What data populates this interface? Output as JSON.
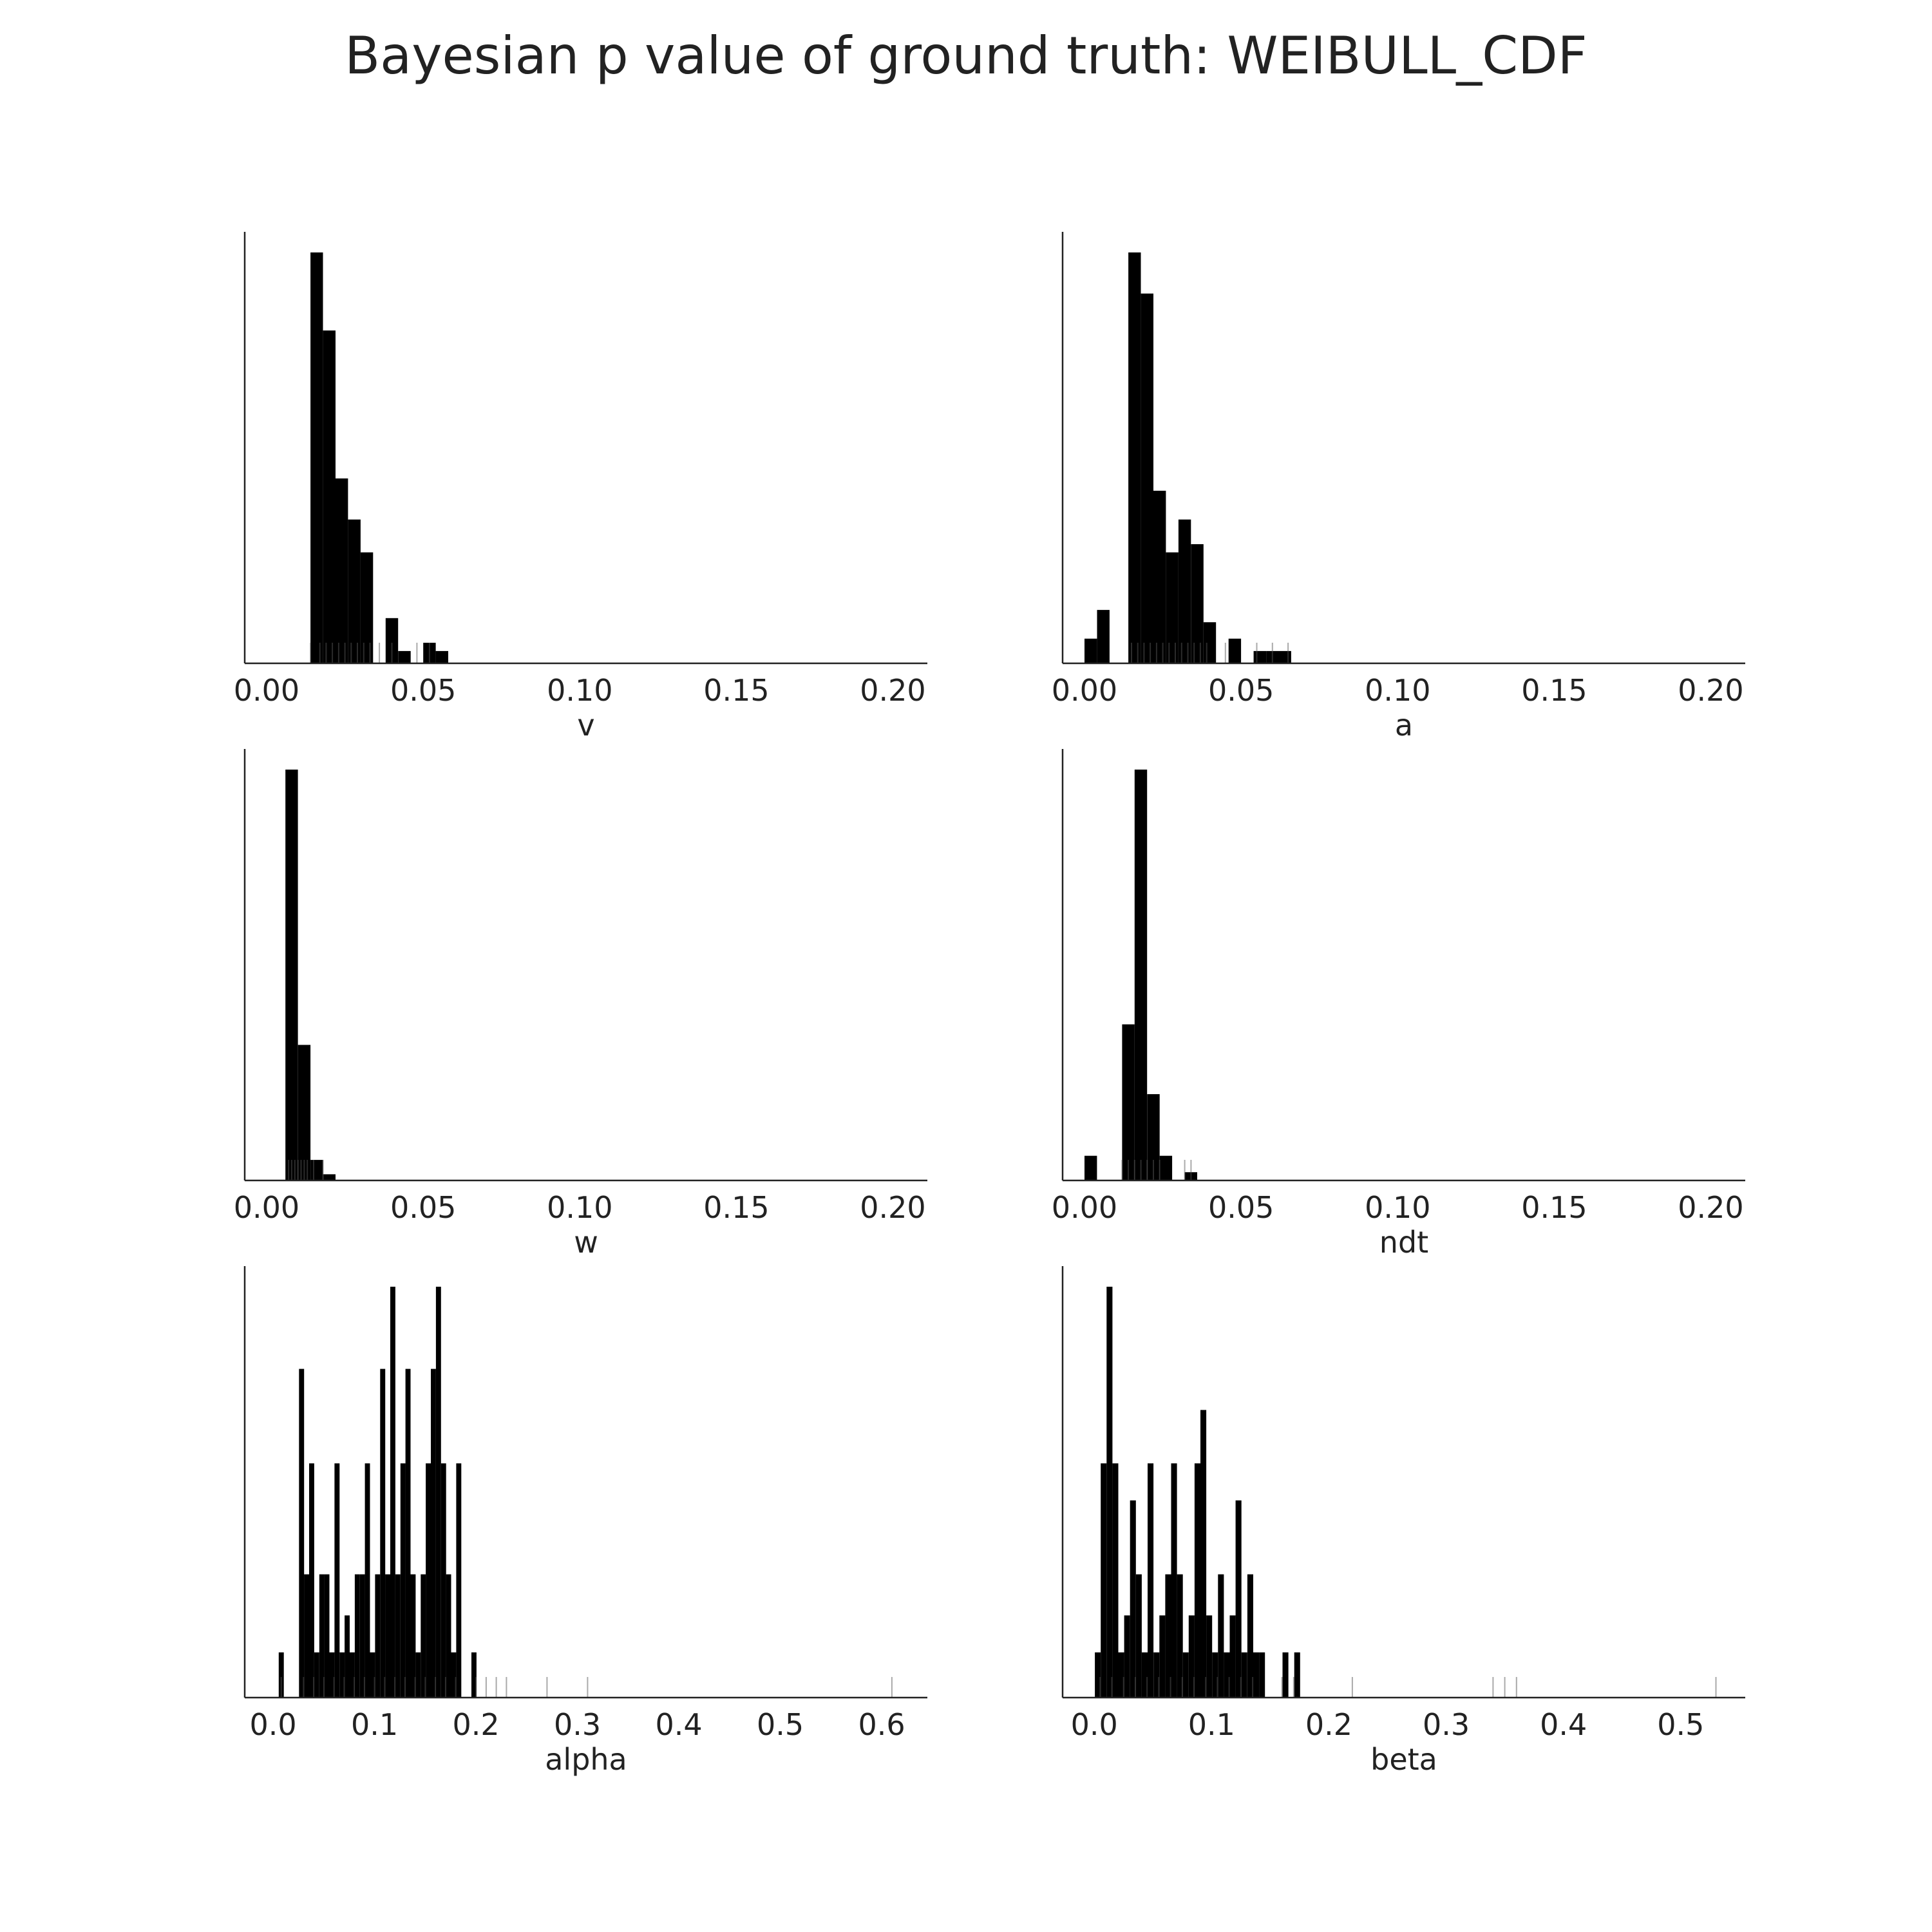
{
  "title": "Bayesian p value of ground truth: WEIBULL_CDF",
  "colors": {
    "bar": "#000000",
    "rug": "#555555",
    "axis": "#222222",
    "text": "#222222"
  },
  "chart_data": [
    {
      "type": "bar",
      "panel": "top-left",
      "xlabel": "v",
      "xlim": [
        -0.007,
        0.211
      ],
      "xticks": [
        0.0,
        0.05,
        0.1,
        0.15,
        0.2
      ],
      "xtick_labels": [
        "0.00",
        "0.05",
        "0.10",
        "0.15",
        "0.20"
      ],
      "bin_width": 0.004,
      "bins": [
        {
          "x": 0.016,
          "h": 1.0
        },
        {
          "x": 0.02,
          "h": 0.81
        },
        {
          "x": 0.024,
          "h": 0.45
        },
        {
          "x": 0.028,
          "h": 0.35
        },
        {
          "x": 0.032,
          "h": 0.27
        },
        {
          "x": 0.04,
          "h": 0.11
        },
        {
          "x": 0.044,
          "h": 0.03
        },
        {
          "x": 0.052,
          "h": 0.05
        },
        {
          "x": 0.056,
          "h": 0.03
        }
      ],
      "rug": [
        0.014,
        0.017,
        0.019,
        0.021,
        0.023,
        0.025,
        0.027,
        0.029,
        0.031,
        0.033,
        0.036,
        0.04,
        0.048,
        0.052
      ]
    },
    {
      "type": "bar",
      "panel": "top-right",
      "xlabel": "a",
      "xlim": [
        -0.007,
        0.211
      ],
      "xticks": [
        0.0,
        0.05,
        0.1,
        0.15,
        0.2
      ],
      "xtick_labels": [
        "0.00",
        "0.05",
        "0.10",
        "0.15",
        "0.20"
      ],
      "bin_width": 0.004,
      "bins": [
        {
          "x": 0.002,
          "h": 0.06
        },
        {
          "x": 0.006,
          "h": 0.13
        },
        {
          "x": 0.016,
          "h": 1.0
        },
        {
          "x": 0.02,
          "h": 0.9
        },
        {
          "x": 0.024,
          "h": 0.42
        },
        {
          "x": 0.028,
          "h": 0.27
        },
        {
          "x": 0.032,
          "h": 0.35
        },
        {
          "x": 0.036,
          "h": 0.29
        },
        {
          "x": 0.04,
          "h": 0.1
        },
        {
          "x": 0.048,
          "h": 0.06
        },
        {
          "x": 0.056,
          "h": 0.03
        },
        {
          "x": 0.06,
          "h": 0.03
        },
        {
          "x": 0.064,
          "h": 0.03
        }
      ],
      "rug": [
        0.015,
        0.017,
        0.019,
        0.021,
        0.023,
        0.025,
        0.027,
        0.029,
        0.031,
        0.033,
        0.035,
        0.037,
        0.039,
        0.045,
        0.055,
        0.06,
        0.065
      ]
    },
    {
      "type": "bar",
      "panel": "middle-left",
      "xlabel": "w",
      "xlim": [
        -0.007,
        0.211
      ],
      "xticks": [
        0.0,
        0.05,
        0.1,
        0.15,
        0.2
      ],
      "xtick_labels": [
        "0.00",
        "0.05",
        "0.10",
        "0.15",
        "0.20"
      ],
      "bin_width": 0.004,
      "bins": [
        {
          "x": 0.008,
          "h": 1.0
        },
        {
          "x": 0.012,
          "h": 0.33
        },
        {
          "x": 0.016,
          "h": 0.05
        },
        {
          "x": 0.02,
          "h": 0.015
        }
      ],
      "rug": [
        0.007,
        0.008,
        0.009,
        0.01,
        0.011,
        0.012,
        0.013,
        0.015,
        0.018
      ]
    },
    {
      "type": "bar",
      "panel": "middle-right",
      "xlabel": "ndt",
      "xlim": [
        -0.007,
        0.211
      ],
      "xticks": [
        0.0,
        0.05,
        0.1,
        0.15,
        0.2
      ],
      "xtick_labels": [
        "0.00",
        "0.05",
        "0.10",
        "0.15",
        "0.20"
      ],
      "bin_width": 0.004,
      "bins": [
        {
          "x": 0.002,
          "h": 0.06
        },
        {
          "x": 0.014,
          "h": 0.38
        },
        {
          "x": 0.018,
          "h": 1.0
        },
        {
          "x": 0.022,
          "h": 0.21
        },
        {
          "x": 0.026,
          "h": 0.06
        },
        {
          "x": 0.034,
          "h": 0.02
        }
      ],
      "rug": [
        0.012,
        0.014,
        0.016,
        0.018,
        0.02,
        0.022,
        0.024,
        0.032,
        0.034
      ]
    },
    {
      "type": "bar",
      "panel": "bottom-left",
      "xlabel": "alpha",
      "xlim": [
        -0.028,
        0.645
      ],
      "xticks": [
        0.0,
        0.1,
        0.2,
        0.3,
        0.4,
        0.5,
        0.6
      ],
      "xtick_labels": [
        "0.0",
        "0.1",
        "0.2",
        "0.3",
        "0.4",
        "0.5",
        "0.6"
      ],
      "bin_width": 0.005,
      "bins": [
        {
          "x": 0.008,
          "h": 0.11
        },
        {
          "x": 0.028,
          "h": 0.8
        },
        {
          "x": 0.033,
          "h": 0.3
        },
        {
          "x": 0.038,
          "h": 0.57
        },
        {
          "x": 0.043,
          "h": 0.11
        },
        {
          "x": 0.048,
          "h": 0.3
        },
        {
          "x": 0.053,
          "h": 0.3
        },
        {
          "x": 0.058,
          "h": 0.11
        },
        {
          "x": 0.063,
          "h": 0.57
        },
        {
          "x": 0.068,
          "h": 0.11
        },
        {
          "x": 0.073,
          "h": 0.2
        },
        {
          "x": 0.078,
          "h": 0.11
        },
        {
          "x": 0.083,
          "h": 0.3
        },
        {
          "x": 0.088,
          "h": 0.3
        },
        {
          "x": 0.093,
          "h": 0.57
        },
        {
          "x": 0.098,
          "h": 0.11
        },
        {
          "x": 0.103,
          "h": 0.3
        },
        {
          "x": 0.108,
          "h": 0.8
        },
        {
          "x": 0.113,
          "h": 0.3
        },
        {
          "x": 0.118,
          "h": 1.0
        },
        {
          "x": 0.123,
          "h": 0.3
        },
        {
          "x": 0.128,
          "h": 0.57
        },
        {
          "x": 0.133,
          "h": 0.8
        },
        {
          "x": 0.138,
          "h": 0.3
        },
        {
          "x": 0.143,
          "h": 0.11
        },
        {
          "x": 0.148,
          "h": 0.3
        },
        {
          "x": 0.153,
          "h": 0.57
        },
        {
          "x": 0.158,
          "h": 0.8
        },
        {
          "x": 0.163,
          "h": 1.0
        },
        {
          "x": 0.168,
          "h": 0.57
        },
        {
          "x": 0.173,
          "h": 0.3
        },
        {
          "x": 0.178,
          "h": 0.11
        },
        {
          "x": 0.183,
          "h": 0.57
        },
        {
          "x": 0.198,
          "h": 0.11
        }
      ],
      "rug": [
        0.008,
        0.03,
        0.04,
        0.05,
        0.06,
        0.07,
        0.08,
        0.09,
        0.1,
        0.11,
        0.12,
        0.13,
        0.14,
        0.15,
        0.16,
        0.17,
        0.18,
        0.2,
        0.21,
        0.22,
        0.23,
        0.27,
        0.31,
        0.61
      ]
    },
    {
      "type": "bar",
      "panel": "bottom-right",
      "xlabel": "beta",
      "xlim": [
        -0.027,
        0.555
      ],
      "xticks": [
        0.0,
        0.1,
        0.2,
        0.3,
        0.4,
        0.5
      ],
      "xtick_labels": [
        "0.0",
        "0.1",
        "0.2",
        "0.3",
        "0.4",
        "0.5"
      ],
      "bin_width": 0.005,
      "bins": [
        {
          "x": 0.003,
          "h": 0.11
        },
        {
          "x": 0.008,
          "h": 0.57
        },
        {
          "x": 0.013,
          "h": 1.0
        },
        {
          "x": 0.018,
          "h": 0.57
        },
        {
          "x": 0.023,
          "h": 0.11
        },
        {
          "x": 0.028,
          "h": 0.2
        },
        {
          "x": 0.033,
          "h": 0.48
        },
        {
          "x": 0.038,
          "h": 0.3
        },
        {
          "x": 0.043,
          "h": 0.11
        },
        {
          "x": 0.048,
          "h": 0.57
        },
        {
          "x": 0.053,
          "h": 0.11
        },
        {
          "x": 0.058,
          "h": 0.2
        },
        {
          "x": 0.063,
          "h": 0.3
        },
        {
          "x": 0.068,
          "h": 0.57
        },
        {
          "x": 0.073,
          "h": 0.3
        },
        {
          "x": 0.078,
          "h": 0.11
        },
        {
          "x": 0.083,
          "h": 0.2
        },
        {
          "x": 0.088,
          "h": 0.57
        },
        {
          "x": 0.093,
          "h": 0.7
        },
        {
          "x": 0.098,
          "h": 0.2
        },
        {
          "x": 0.103,
          "h": 0.11
        },
        {
          "x": 0.108,
          "h": 0.3
        },
        {
          "x": 0.113,
          "h": 0.11
        },
        {
          "x": 0.118,
          "h": 0.2
        },
        {
          "x": 0.123,
          "h": 0.48
        },
        {
          "x": 0.128,
          "h": 0.11
        },
        {
          "x": 0.133,
          "h": 0.3
        },
        {
          "x": 0.138,
          "h": 0.11
        },
        {
          "x": 0.143,
          "h": 0.11
        },
        {
          "x": 0.163,
          "h": 0.11
        },
        {
          "x": 0.173,
          "h": 0.11
        }
      ],
      "rug": [
        0.005,
        0.015,
        0.025,
        0.035,
        0.045,
        0.055,
        0.065,
        0.075,
        0.085,
        0.095,
        0.105,
        0.115,
        0.125,
        0.135,
        0.16,
        0.17,
        0.22,
        0.34,
        0.35,
        0.36,
        0.53
      ]
    }
  ]
}
